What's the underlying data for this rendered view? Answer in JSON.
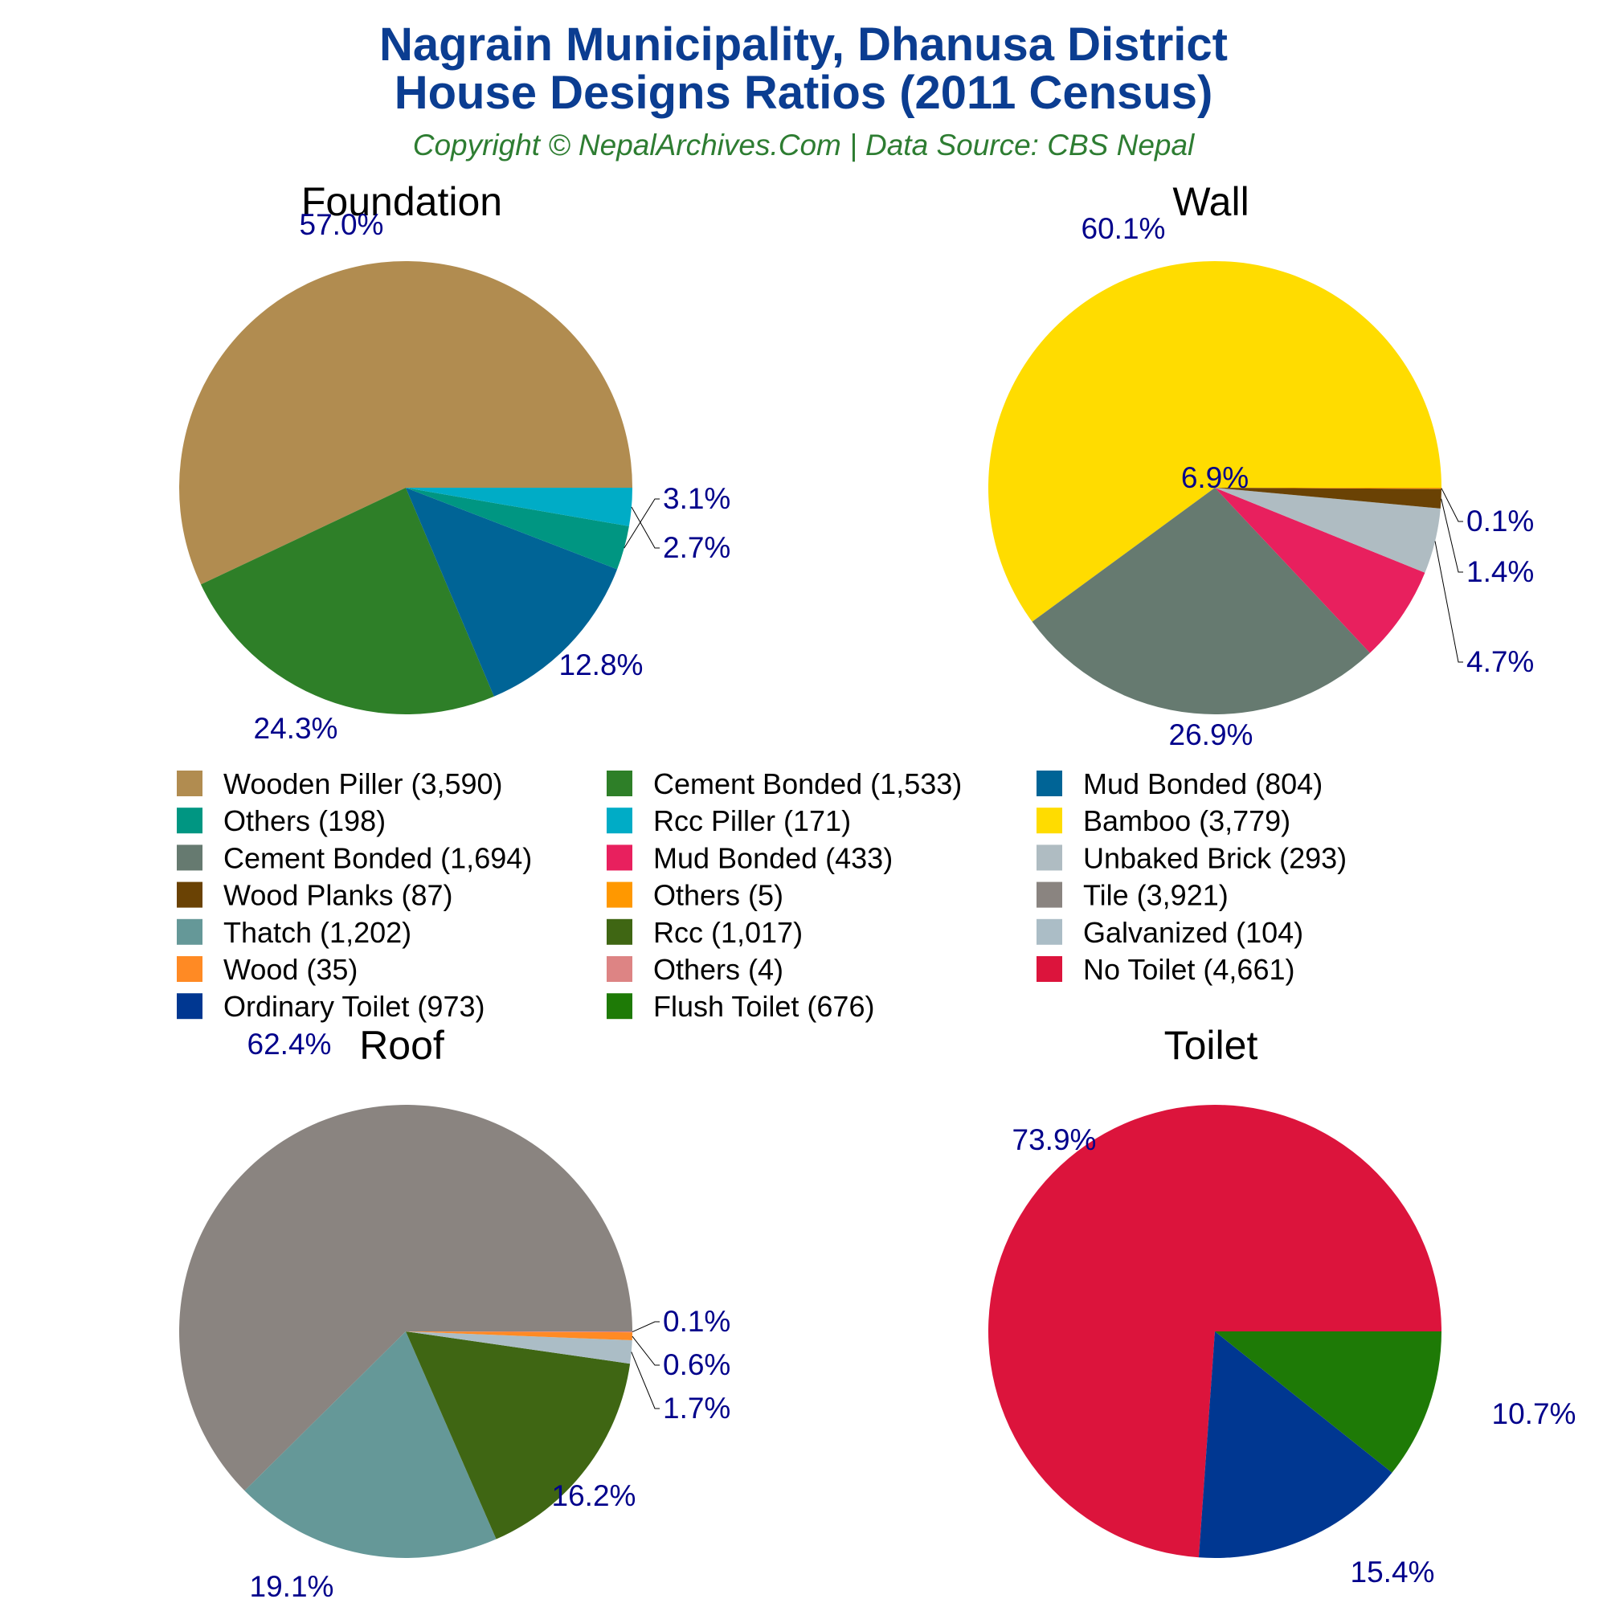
{
  "header": {
    "title_line1": "Nagrain Municipality, Dhanusa District",
    "title_line2": "House Designs Ratios (2011 Census)",
    "subtitle": "Copyright © NepalArchives.Com | Data Source: CBS Nepal",
    "title_color": "#0b3d91",
    "subtitle_color": "#2e7d32",
    "label_color": "#00008b"
  },
  "legend": {
    "items": [
      {
        "label": "Wooden Piller (3,590)",
        "color": "#b18c50"
      },
      {
        "label": "Cement Bonded (1,533)",
        "color": "#2e7f28"
      },
      {
        "label": "Mud Bonded (804)",
        "color": "#006496"
      },
      {
        "label": "Others (198)",
        "color": "#009682"
      },
      {
        "label": "Rcc Piller (171)",
        "color": "#00acc6"
      },
      {
        "label": "Bamboo (3,779)",
        "color": "#ffdc00"
      },
      {
        "label": "Cement Bonded (1,694)",
        "color": "#667a70"
      },
      {
        "label": "Mud Bonded (433)",
        "color": "#e8205e"
      },
      {
        "label": "Unbaked Brick (293)",
        "color": "#afbcc2"
      },
      {
        "label": "Wood Planks (87)",
        "color": "#6a4204"
      },
      {
        "label": "Others (5)",
        "color": "#ff9800"
      },
      {
        "label": "Tile (3,921)",
        "color": "#8a8480"
      },
      {
        "label": "Thatch (1,202)",
        "color": "#659898"
      },
      {
        "label": "Rcc (1,017)",
        "color": "#3f6613"
      },
      {
        "label": "Galvanized (104)",
        "color": "#abbdc6"
      },
      {
        "label": "Wood (35)",
        "color": "#ff8a24"
      },
      {
        "label": "Others (4)",
        "color": "#dd8484"
      },
      {
        "label": "No Toilet (4,661)",
        "color": "#dc143c"
      },
      {
        "label": "Ordinary Toilet (973)",
        "color": "#003791"
      },
      {
        "label": "Flush Toilet (676)",
        "color": "#1e7a06"
      }
    ]
  },
  "chart_data": [
    {
      "type": "pie",
      "title": "Foundation",
      "slices": [
        {
          "category": "Wooden Piller",
          "value": 3590,
          "label": "57.0%",
          "color": "#b18c50"
        },
        {
          "category": "Cement Bonded",
          "value": 1533,
          "label": "24.3%",
          "color": "#2e7f28"
        },
        {
          "category": "Mud Bonded",
          "value": 804,
          "label": "12.8%",
          "color": "#006496"
        },
        {
          "category": "Others",
          "value": 198,
          "label": "3.1%",
          "color": "#009682"
        },
        {
          "category": "Rcc Piller",
          "value": 171,
          "label": "2.7%",
          "color": "#00acc6"
        }
      ]
    },
    {
      "type": "pie",
      "title": "Wall",
      "slices": [
        {
          "category": "Bamboo",
          "value": 3779,
          "label": "60.1%",
          "color": "#ffdc00"
        },
        {
          "category": "Cement Bonded",
          "value": 1694,
          "label": "26.9%",
          "color": "#667a70"
        },
        {
          "category": "Mud Bonded",
          "value": 433,
          "label": "6.9%",
          "color": "#e8205e"
        },
        {
          "category": "Unbaked Brick",
          "value": 293,
          "label": "4.7%",
          "color": "#afbcc2"
        },
        {
          "category": "Wood Planks",
          "value": 87,
          "label": "1.4%",
          "color": "#6a4204"
        },
        {
          "category": "Others",
          "value": 5,
          "label": "0.1%",
          "color": "#ff9800"
        }
      ]
    },
    {
      "type": "pie",
      "title": "Roof",
      "slices": [
        {
          "category": "Tile",
          "value": 3921,
          "label": "62.4%",
          "color": "#8a8480"
        },
        {
          "category": "Thatch",
          "value": 1202,
          "label": "19.1%",
          "color": "#659898"
        },
        {
          "category": "Rcc",
          "value": 1017,
          "label": "16.2%",
          "color": "#3f6613"
        },
        {
          "category": "Galvanized",
          "value": 104,
          "label": "1.7%",
          "color": "#abbdc6"
        },
        {
          "category": "Wood",
          "value": 35,
          "label": "0.6%",
          "color": "#ff8a24"
        },
        {
          "category": "Others",
          "value": 4,
          "label": "0.1%",
          "color": "#dd8484"
        }
      ]
    },
    {
      "type": "pie",
      "title": "Toilet",
      "slices": [
        {
          "category": "No Toilet",
          "value": 4661,
          "label": "73.9%",
          "color": "#dc143c"
        },
        {
          "category": "Ordinary Toilet",
          "value": 973,
          "label": "15.4%",
          "color": "#003791"
        },
        {
          "category": "Flush Toilet",
          "value": 676,
          "label": "10.7%",
          "color": "#1e7a06"
        }
      ]
    }
  ]
}
